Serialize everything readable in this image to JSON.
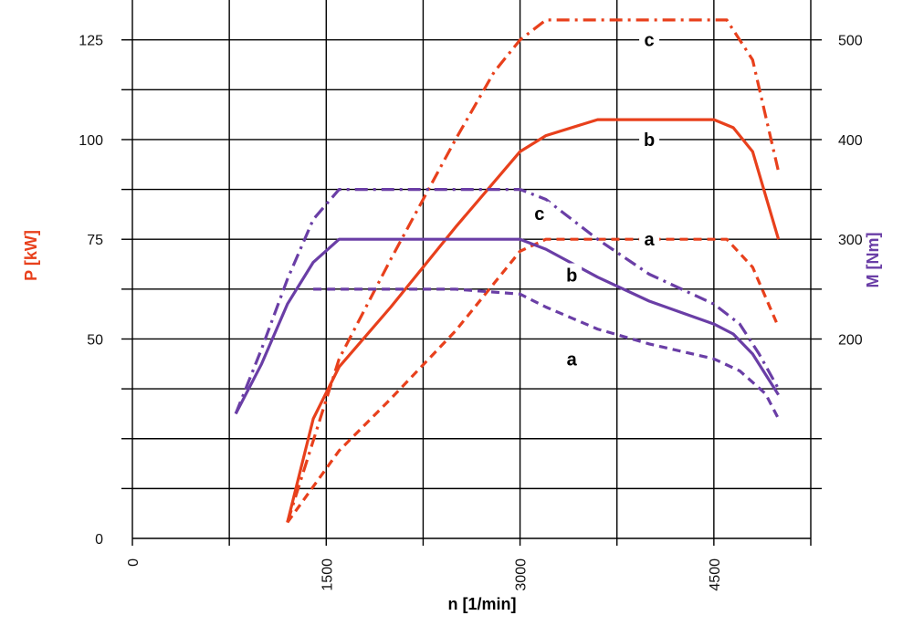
{
  "chart_data": {
    "type": "line",
    "colors": {
      "power": "#e8401c",
      "torque": "#6a3ea6",
      "grid": "#000000"
    },
    "x_axis": {
      "label": "n [1/min]",
      "ticks": [
        "0",
        "1500",
        "3000",
        "4500"
      ],
      "range": [
        0,
        5250
      ]
    },
    "y_left": {
      "label": "P [kW]",
      "ticks": [
        "0",
        "50",
        "75",
        "100",
        "125"
      ],
      "range": [
        0,
        135
      ]
    },
    "y_right": {
      "label": "M [Nm]",
      "ticks": [
        "200",
        "300",
        "400",
        "500"
      ],
      "range": [
        0,
        540
      ]
    },
    "series": [
      {
        "name": "a",
        "quantity": "P [kW]",
        "axis": "left",
        "style": "dashed",
        "x": [
          1200,
          1600,
          2000,
          2500,
          3000,
          3200,
          4000,
          4600,
          4800,
          5000
        ],
        "y": [
          4,
          22,
          35,
          52,
          72,
          75,
          75,
          75,
          68,
          53
        ]
      },
      {
        "name": "b",
        "quantity": "P [kW]",
        "axis": "left",
        "style": "solid",
        "x": [
          1200,
          1400,
          1600,
          2000,
          2500,
          3000,
          3200,
          3600,
          4000,
          4500,
          4650,
          4800,
          5000
        ],
        "y": [
          4,
          30,
          43,
          58,
          78,
          97,
          101,
          105,
          105,
          105,
          103,
          97,
          75
        ]
      },
      {
        "name": "c",
        "quantity": "P [kW]",
        "axis": "left",
        "style": "dash-dot",
        "x": [
          1200,
          1600,
          2000,
          2500,
          2800,
          3000,
          3200,
          3600,
          4000,
          4600,
          4800,
          5000
        ],
        "y": [
          4,
          45,
          70,
          100,
          117,
          125,
          130,
          130,
          130,
          130,
          120,
          92
        ]
      },
      {
        "name": "a",
        "quantity": "M [Nm]",
        "axis": "right",
        "style": "dashed",
        "x": [
          1400,
          1600,
          2000,
          2500,
          3000,
          3200,
          3600,
          4000,
          4500,
          4700,
          4900,
          5000
        ],
        "y": [
          250,
          250,
          250,
          250,
          245,
          232,
          210,
          195,
          180,
          168,
          145,
          120
        ]
      },
      {
        "name": "b",
        "quantity": "M [Nm]",
        "axis": "right",
        "style": "solid",
        "x": [
          800,
          1000,
          1200,
          1400,
          1600,
          2000,
          2500,
          3000,
          3200,
          3600,
          4000,
          4500,
          4650,
          4800,
          5000
        ],
        "y": [
          125,
          175,
          235,
          277,
          300,
          300,
          300,
          300,
          290,
          262,
          238,
          215,
          205,
          185,
          144
        ]
      },
      {
        "name": "c",
        "quantity": "M [Nm]",
        "axis": "right",
        "style": "dash-dot",
        "x": [
          800,
          1000,
          1200,
          1400,
          1600,
          2000,
          2500,
          3000,
          3200,
          3600,
          4000,
          4500,
          4700,
          4850,
          5000
        ],
        "y": [
          125,
          190,
          260,
          320,
          350,
          350,
          350,
          350,
          340,
          300,
          265,
          235,
          215,
          185,
          150
        ]
      }
    ],
    "series_labels": [
      {
        "text": "c",
        "x": 4000,
        "y": 125
      },
      {
        "text": "b",
        "x": 4000,
        "y": 100
      },
      {
        "text": "a",
        "x": 4000,
        "y": 75
      },
      {
        "text": "c",
        "x": 3150,
        "y": 81.5
      },
      {
        "text": "b",
        "x": 3400,
        "y": 66
      },
      {
        "text": "a",
        "x": 3400,
        "y": 45
      }
    ]
  }
}
